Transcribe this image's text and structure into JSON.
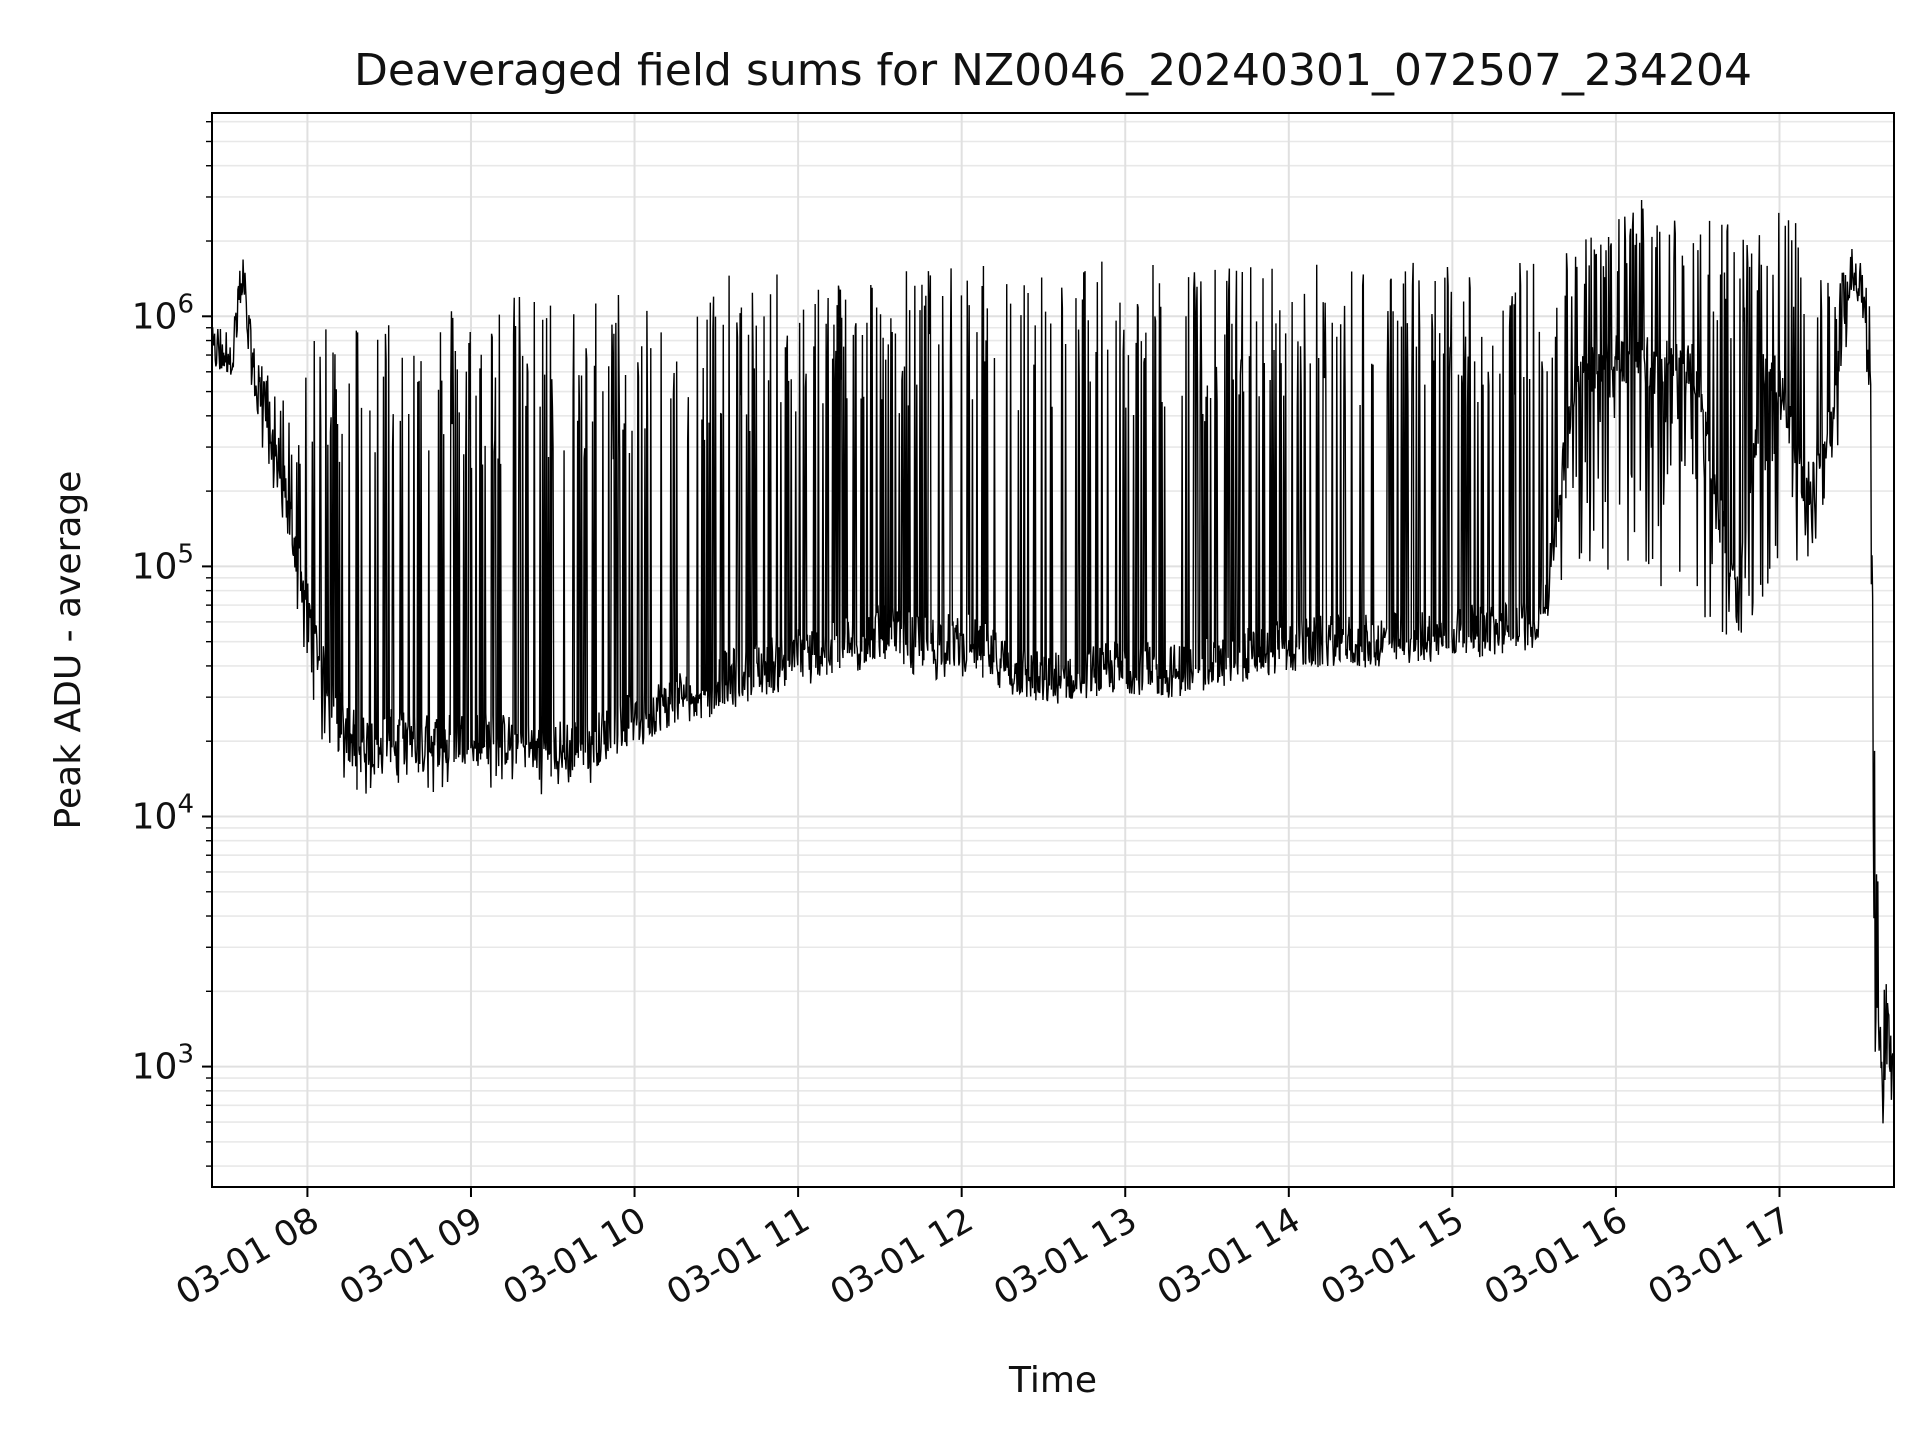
{
  "chart_data": {
    "type": "line",
    "title": "Deaveraged field sums for NZ0046_20240301_072507_234204",
    "xlabel": "Time",
    "ylabel": "Peak ADU - average",
    "yscale": "log",
    "ylim": [
      330,
      6500000
    ],
    "xlim": [
      "2024-03-01 07:25",
      "2024-03-01 17:42"
    ],
    "x_ticks": [
      {
        "t": "2024-03-01 08:00",
        "label": "03-01 08"
      },
      {
        "t": "2024-03-01 09:00",
        "label": "03-01 09"
      },
      {
        "t": "2024-03-01 10:00",
        "label": "03-01 10"
      },
      {
        "t": "2024-03-01 11:00",
        "label": "03-01 11"
      },
      {
        "t": "2024-03-01 12:00",
        "label": "03-01 12"
      },
      {
        "t": "2024-03-01 13:00",
        "label": "03-01 13"
      },
      {
        "t": "2024-03-01 14:00",
        "label": "03-01 14"
      },
      {
        "t": "2024-03-01 15:00",
        "label": "03-01 15"
      },
      {
        "t": "2024-03-01 16:00",
        "label": "03-01 16"
      },
      {
        "t": "2024-03-01 17:00",
        "label": "03-01 17"
      }
    ],
    "y_ticks": [
      {
        "value": 1000,
        "base": "10",
        "exp": "3"
      },
      {
        "value": 10000,
        "base": "10",
        "exp": "4"
      },
      {
        "value": 100000,
        "base": "10",
        "exp": "5"
      },
      {
        "value": 1000000,
        "base": "10",
        "exp": "6"
      }
    ],
    "grid": true,
    "line_color": "#000000",
    "series": [
      {
        "x": [
          "2024-03-01 07:25",
          "2024-03-01 07:27",
          "2024-03-01 07:30",
          "2024-03-01 07:33",
          "2024-03-01 07:36",
          "2024-03-01 07:38",
          "2024-03-01 07:41",
          "2024-03-01 07:45",
          "2024-03-01 07:50",
          "2024-03-01 07:55",
          "2024-03-01 08:00",
          "2024-03-01 08:05",
          "2024-03-01 08:10",
          "2024-03-01 08:15",
          "2024-03-01 08:20",
          "2024-03-01 08:30",
          "2024-03-01 08:45",
          "2024-03-01 09:00",
          "2024-03-01 09:15",
          "2024-03-01 09:30",
          "2024-03-01 09:45",
          "2024-03-01 10:00",
          "2024-03-01 10:15",
          "2024-03-01 10:30",
          "2024-03-01 10:45",
          "2024-03-01 11:00",
          "2024-03-01 11:15",
          "2024-03-01 11:30",
          "2024-03-01 11:45",
          "2024-03-01 12:00",
          "2024-03-01 12:15",
          "2024-03-01 12:30",
          "2024-03-01 12:45",
          "2024-03-01 13:00",
          "2024-03-01 13:15",
          "2024-03-01 13:30",
          "2024-03-01 13:45",
          "2024-03-01 14:00",
          "2024-03-01 14:15",
          "2024-03-01 14:30",
          "2024-03-01 14:45",
          "2024-03-01 15:00",
          "2024-03-01 15:15",
          "2024-03-01 15:30",
          "2024-03-01 15:35",
          "2024-03-01 15:45",
          "2024-03-01 16:00",
          "2024-03-01 16:15",
          "2024-03-01 16:30",
          "2024-03-01 16:40",
          "2024-03-01 16:45",
          "2024-03-01 16:55",
          "2024-03-01 17:00",
          "2024-03-01 17:10",
          "2024-03-01 17:20",
          "2024-03-01 17:26",
          "2024-03-01 17:30",
          "2024-03-01 17:33",
          "2024-03-01 17:35",
          "2024-03-01 17:38",
          "2024-03-01 17:40",
          "2024-03-01 17:42"
        ],
        "baseline": [
          700000,
          750000,
          720000,
          800000,
          1300000,
          900000,
          550000,
          400000,
          250000,
          120000,
          70000,
          40000,
          28000,
          22000,
          20000,
          21000,
          20000,
          21000,
          20000,
          19000,
          20000,
          25000,
          30000,
          35000,
          40000,
          45000,
          48000,
          55000,
          50000,
          52000,
          42000,
          35000,
          38000,
          40000,
          38000,
          40000,
          45000,
          48000,
          50000,
          50000,
          52000,
          55000,
          55000,
          60000,
          80000,
          600000,
          700000,
          650000,
          600000,
          120000,
          70000,
          700000,
          500000,
          200000,
          400000,
          1500000,
          1500000,
          500000,
          1500,
          1000,
          1400,
          800
        ],
        "peaks": [
          750000,
          800000,
          780000,
          850000,
          2000000,
          1200000,
          700000,
          600000,
          500000,
          400000,
          600000,
          1100000,
          1100000,
          1100000,
          1150000,
          1150000,
          1200000,
          1200000,
          1250000,
          1250000,
          1300000,
          1350000,
          1400000,
          1450000,
          1500000,
          1500000,
          1550000,
          1600000,
          1600000,
          1600000,
          1650000,
          1650000,
          1700000,
          1650000,
          1600000,
          1650000,
          1650000,
          1700000,
          1650000,
          1700000,
          1700000,
          1700000,
          1700000,
          1700000,
          1800000,
          2000000,
          2500000,
          3500000,
          2500000,
          3000000,
          2000000,
          2200000,
          3000000,
          2000000,
          1500000,
          1500000,
          1500000,
          1500000,
          17000,
          3000,
          1700,
          1000
        ],
        "troughs": [
          500000,
          550000,
          550000,
          600000,
          1000000,
          700000,
          400000,
          250000,
          150000,
          60000,
          40000,
          20000,
          15000,
          13000,
          12000,
          13000,
          12500,
          11000,
          13000,
          12000,
          13500,
          18000,
          22000,
          25000,
          30000,
          32000,
          35000,
          40000,
          35000,
          35000,
          30000,
          28000,
          30000,
          32000,
          30000,
          32000,
          35000,
          38000,
          40000,
          40000,
          42000,
          45000,
          45000,
          50000,
          60000,
          100000,
          90000,
          80000,
          60000,
          50000,
          48000,
          80000,
          70000,
          100000,
          200000,
          1200000,
          1100000,
          400000,
          550,
          550,
          600,
          500
        ]
      }
    ]
  }
}
